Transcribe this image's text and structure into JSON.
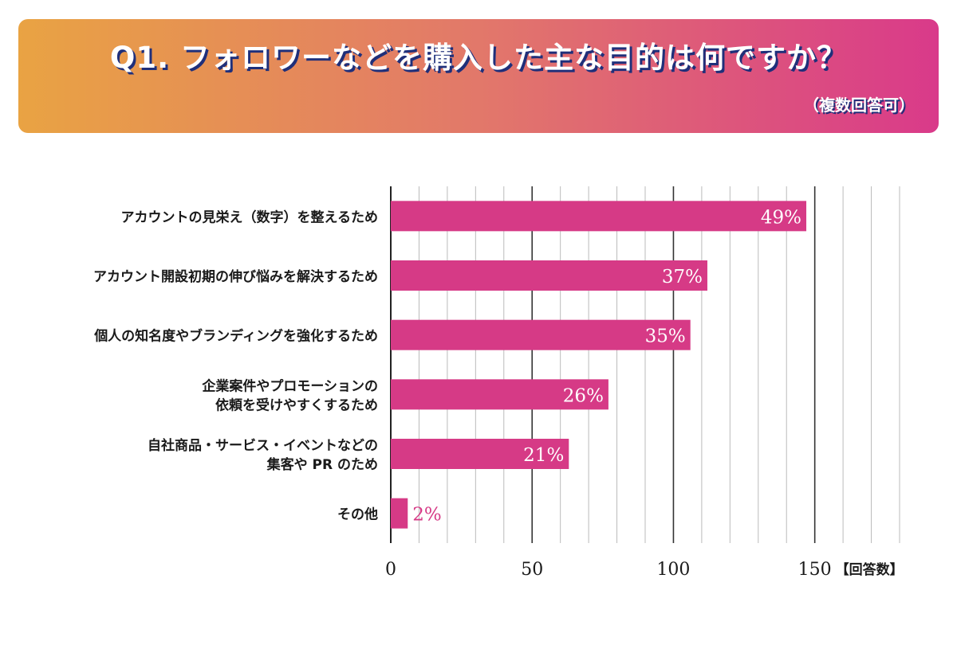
{
  "header": {
    "title": "Q1. フォロワーなどを購入した主な目的は何ですか？",
    "subtitle": "（複数回答可）"
  },
  "chart_data": {
    "type": "bar",
    "orientation": "horizontal",
    "title": "Q1. フォロワーなどを購入した主な目的は何ですか？",
    "subtitle": "（複数回答可）",
    "xlabel": "【回答数】",
    "xlim": [
      0,
      180
    ],
    "xticks": [
      0,
      50,
      100,
      150
    ],
    "grid": true,
    "categories": [
      [
        "アカウントの見栄え（数字）を整えるため"
      ],
      [
        "アカウント開設初期の伸び悩みを解決するため"
      ],
      [
        "個人の知名度やブランディングを強化するため"
      ],
      [
        "企業案件やプロモーションの",
        "依頼を受けやすくするため"
      ],
      [
        "自社商品・サービス・イベントなどの",
        "集客や PR のため"
      ],
      [
        "その他"
      ]
    ],
    "values": [
      147,
      112,
      106,
      77,
      63,
      6
    ],
    "labels": [
      "49%",
      "37%",
      "35%",
      "26%",
      "21%",
      "2%"
    ],
    "bar_color": "#d63a86"
  }
}
